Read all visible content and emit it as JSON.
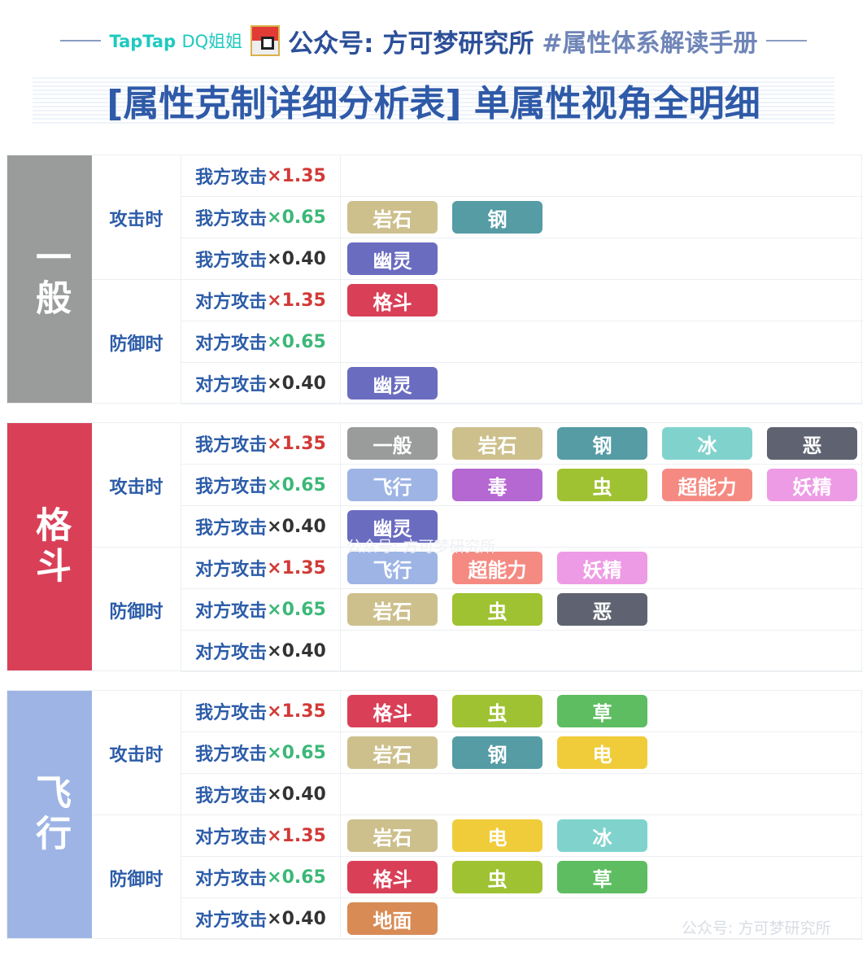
{
  "header": {
    "brand": "TapTap",
    "brand_sub": "DQ姐姐",
    "account": "公众号: 方可梦研究所",
    "hashtag": "#属性体系解读手册"
  },
  "title": "[属性克制详细分析表] 单属性视角全明细",
  "watermark": "公众号: 方可梦研究所",
  "colors": {
    "一般": "#9a9b9b",
    "岩石": "#cdc08d",
    "钢": "#559ca5",
    "幽灵": "#6a6cc0",
    "格斗": "#d94058",
    "冰": "#80d3cd",
    "恶": "#5f6371",
    "飞行": "#9db4e5",
    "毒": "#b567d2",
    "虫": "#9fc232",
    "超能力": "#f58a82",
    "妖精": "#ee9be5",
    "草": "#5dbd60",
    "电": "#f0cc3b",
    "地面": "#d98b55"
  },
  "mult_colors": {
    "×1.35": "#d13a36",
    "×0.65": "#3cb878",
    "×0.40": "#333333"
  },
  "sections": [
    {
      "type": "一般",
      "halves": [
        {
          "label": "攻击时",
          "rows": [
            {
              "prefix": "我方攻击",
              "mult": "×1.35",
              "types": []
            },
            {
              "prefix": "我方攻击",
              "mult": "×0.65",
              "types": [
                "岩石",
                "钢"
              ]
            },
            {
              "prefix": "我方攻击",
              "mult": "×0.40",
              "types": [
                "幽灵"
              ]
            }
          ]
        },
        {
          "label": "防御时",
          "rows": [
            {
              "prefix": "对方攻击",
              "mult": "×1.35",
              "types": [
                "格斗"
              ]
            },
            {
              "prefix": "对方攻击",
              "mult": "×0.65",
              "types": []
            },
            {
              "prefix": "对方攻击",
              "mult": "×0.40",
              "types": [
                "幽灵"
              ]
            }
          ]
        }
      ]
    },
    {
      "type": "格斗",
      "halves": [
        {
          "label": "攻击时",
          "rows": [
            {
              "prefix": "我方攻击",
              "mult": "×1.35",
              "types": [
                "一般",
                "岩石",
                "钢",
                "冰",
                "恶"
              ]
            },
            {
              "prefix": "我方攻击",
              "mult": "×0.65",
              "types": [
                "飞行",
                "毒",
                "虫",
                "超能力",
                "妖精"
              ]
            },
            {
              "prefix": "我方攻击",
              "mult": "×0.40",
              "types": [
                "幽灵"
              ]
            }
          ]
        },
        {
          "label": "防御时",
          "rows": [
            {
              "prefix": "对方攻击",
              "mult": "×1.35",
              "types": [
                "飞行",
                "超能力",
                "妖精"
              ]
            },
            {
              "prefix": "对方攻击",
              "mult": "×0.65",
              "types": [
                "岩石",
                "虫",
                "恶"
              ]
            },
            {
              "prefix": "对方攻击",
              "mult": "×0.40",
              "types": []
            }
          ]
        }
      ]
    },
    {
      "type": "飞行",
      "halves": [
        {
          "label": "攻击时",
          "rows": [
            {
              "prefix": "我方攻击",
              "mult": "×1.35",
              "types": [
                "格斗",
                "虫",
                "草"
              ]
            },
            {
              "prefix": "我方攻击",
              "mult": "×0.65",
              "types": [
                "岩石",
                "钢",
                "电"
              ]
            },
            {
              "prefix": "我方攻击",
              "mult": "×0.40",
              "types": []
            }
          ]
        },
        {
          "label": "防御时",
          "rows": [
            {
              "prefix": "对方攻击",
              "mult": "×1.35",
              "types": [
                "岩石",
                "电",
                "冰"
              ]
            },
            {
              "prefix": "对方攻击",
              "mult": "×0.65",
              "types": [
                "格斗",
                "虫",
                "草"
              ]
            },
            {
              "prefix": "对方攻击",
              "mult": "×0.40",
              "types": [
                "地面"
              ]
            }
          ]
        }
      ]
    }
  ]
}
